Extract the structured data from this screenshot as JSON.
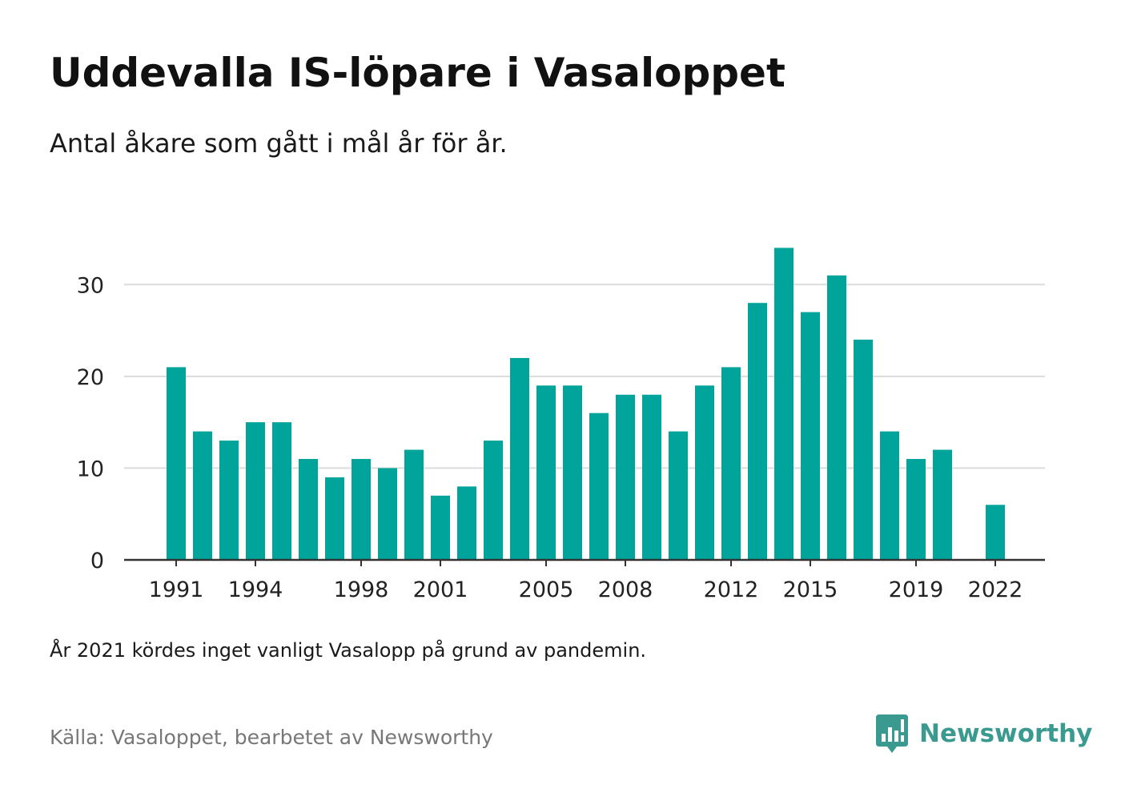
{
  "title": "Uddevalla IS-löpare i Vasaloppet",
  "subtitle": "Antal åkare som gått i mål år för år.",
  "note": "År 2021 kördes inget vanligt Vasalopp på grund av pandemin.",
  "source": "Källa: Vasaloppet, bearbetet av Newsworthy",
  "brand": {
    "name": "Newsworthy",
    "icon": "newsworthy-logo-icon",
    "color": "#3a9a90"
  },
  "chart_data": {
    "type": "bar",
    "title": "Uddevalla IS-löpare i Vasaloppet",
    "subtitle": "Antal åkare som gått i mål år för år.",
    "xlabel": "",
    "ylabel": "",
    "bar_color": "#00a49a",
    "grid": true,
    "ylim": [
      0,
      35
    ],
    "yticks": [
      0,
      10,
      20,
      30
    ],
    "xticks": [
      1991,
      1994,
      1998,
      2001,
      2005,
      2008,
      2012,
      2015,
      2019,
      2022
    ],
    "x": [
      1991,
      1992,
      1993,
      1994,
      1995,
      1996,
      1997,
      1998,
      1999,
      2000,
      2001,
      2002,
      2003,
      2004,
      2005,
      2006,
      2007,
      2008,
      2009,
      2010,
      2011,
      2012,
      2013,
      2014,
      2015,
      2016,
      2017,
      2018,
      2019,
      2020,
      2021,
      2022
    ],
    "values": [
      21,
      14,
      13,
      15,
      15,
      11,
      9,
      11,
      10,
      12,
      7,
      8,
      13,
      22,
      19,
      19,
      16,
      18,
      18,
      14,
      19,
      21,
      28,
      34,
      27,
      31,
      24,
      14,
      11,
      12,
      null,
      6
    ]
  }
}
